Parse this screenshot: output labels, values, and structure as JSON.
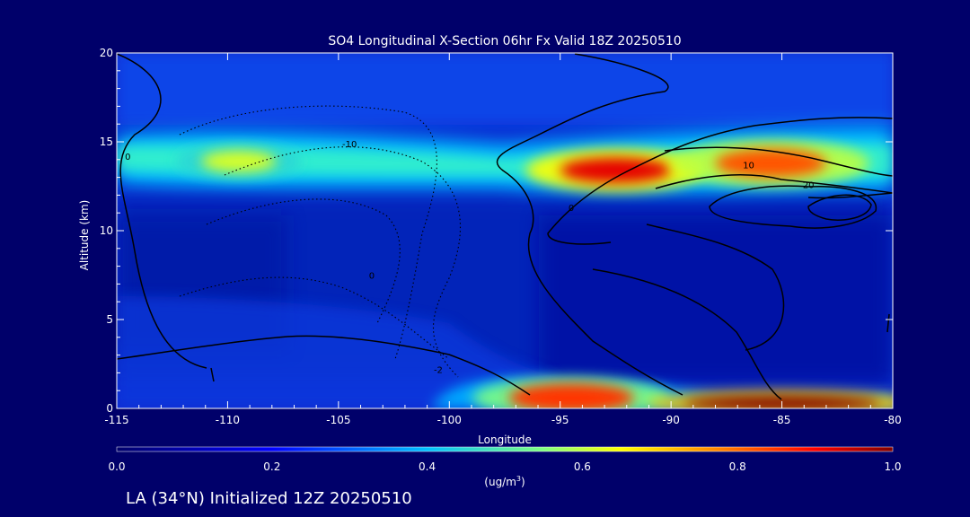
{
  "chart_data": {
    "type": "heatmap",
    "title": "SO4 Longitudinal X-Section 06hr  Fx Valid 18Z 20250510",
    "xlabel": "Longitude",
    "ylabel": "Altitude (km)",
    "xlim": [
      -115,
      -80
    ],
    "ylim": [
      0,
      20
    ],
    "x_ticks": [
      "-115",
      "-110",
      "-105",
      "-100",
      "-95",
      "-90",
      "-85",
      "-80"
    ],
    "x_tick_values": [
      -115,
      -110,
      -105,
      -100,
      -95,
      -90,
      -85,
      -80
    ],
    "y_ticks": [
      "0",
      "5",
      "10",
      "15",
      "20"
    ],
    "y_tick_values": [
      0,
      5,
      10,
      15,
      20
    ],
    "colorbar": {
      "ticks": [
        "0.0",
        "0.2",
        "0.4",
        "0.6",
        "0.8",
        "1.0"
      ],
      "tick_values": [
        0.0,
        0.2,
        0.4,
        0.6,
        0.8,
        1.0
      ],
      "units_label": "(ug/m",
      "units_superscript": "3",
      "units_close": ")"
    },
    "contour_labels": [
      {
        "text": "0",
        "lon": -114.5,
        "alt": 14.0
      },
      {
        "text": "-10",
        "lon": -104.5,
        "alt": 14.7
      },
      {
        "text": "0",
        "lon": -94.5,
        "alt": 11.1
      },
      {
        "text": "10",
        "lon": -86.5,
        "alt": 13.5
      },
      {
        "text": "20",
        "lon": -83.8,
        "alt": 12.4
      },
      {
        "text": "-2",
        "lon": -100.5,
        "alt": 2.0
      },
      {
        "text": "0",
        "lon": -103.5,
        "alt": 7.3
      }
    ],
    "features": [
      {
        "name": "upper plume west",
        "lon": -109.5,
        "alt": 13.9,
        "value": 0.62
      },
      {
        "name": "upper plume central",
        "lon": -92.5,
        "alt": 13.4,
        "value": 0.92
      },
      {
        "name": "upper plume east",
        "lon": -85.5,
        "alt": 13.8,
        "value": 0.82
      },
      {
        "name": "surface plume central",
        "lon": -94.5,
        "alt": 0.6,
        "value": 0.85
      },
      {
        "name": "surface plume east",
        "lon": -85.0,
        "alt": 0.3,
        "value": 1.0
      }
    ],
    "footer": "LA (34°N) Initialized 12Z 20250510"
  }
}
